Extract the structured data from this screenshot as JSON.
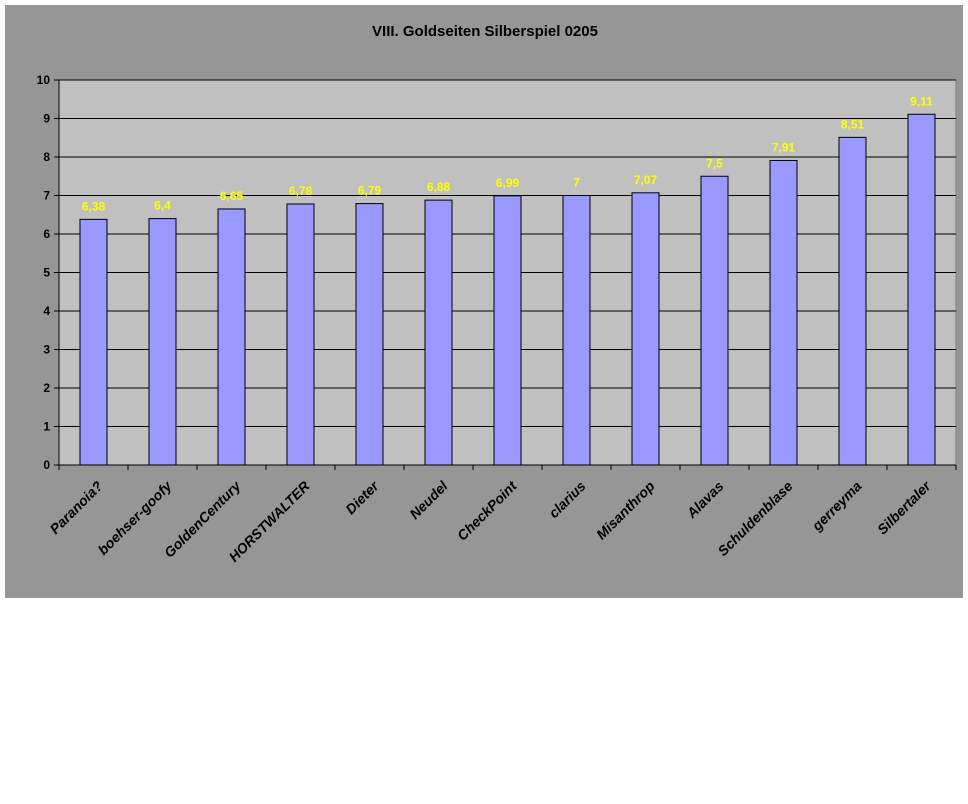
{
  "chart_data": {
    "type": "bar",
    "title": "VIII. Goldseiten Silberspiel 0205",
    "xlabel": "",
    "ylabel": "",
    "categories": [
      "Paranoia?",
      "boehser-goofy",
      "GoldenCentury",
      "HORSTWALTER",
      "Dieter",
      "Neudel",
      "CheckPoint",
      "clarius",
      "Misanthrop",
      "Alavas",
      "Schuldenblase",
      "gerreyma",
      "Silbertaler"
    ],
    "values": [
      6.38,
      6.4,
      6.65,
      6.78,
      6.79,
      6.88,
      6.99,
      7,
      7.07,
      7.5,
      7.91,
      8.51,
      9.11
    ],
    "data_labels": [
      "6,38",
      "6,4",
      "6,65",
      "6,78",
      "6,79",
      "6,88",
      "6,99",
      "7",
      "7,07",
      "7,5",
      "7,91",
      "8,51",
      "9,11"
    ],
    "ylim": [
      0,
      10
    ],
    "yticks": [
      "0",
      "1",
      "2",
      "3",
      "4",
      "5",
      "6",
      "7",
      "8",
      "9",
      "10"
    ],
    "grid": true,
    "legend": "none",
    "colors": {
      "chart_area": "#969696",
      "plot_area": "#c0c0c0",
      "bar_fill": "#9999ff",
      "bar_stroke": "#000000",
      "data_label": "#ffff00",
      "gridline": "#000000"
    }
  }
}
